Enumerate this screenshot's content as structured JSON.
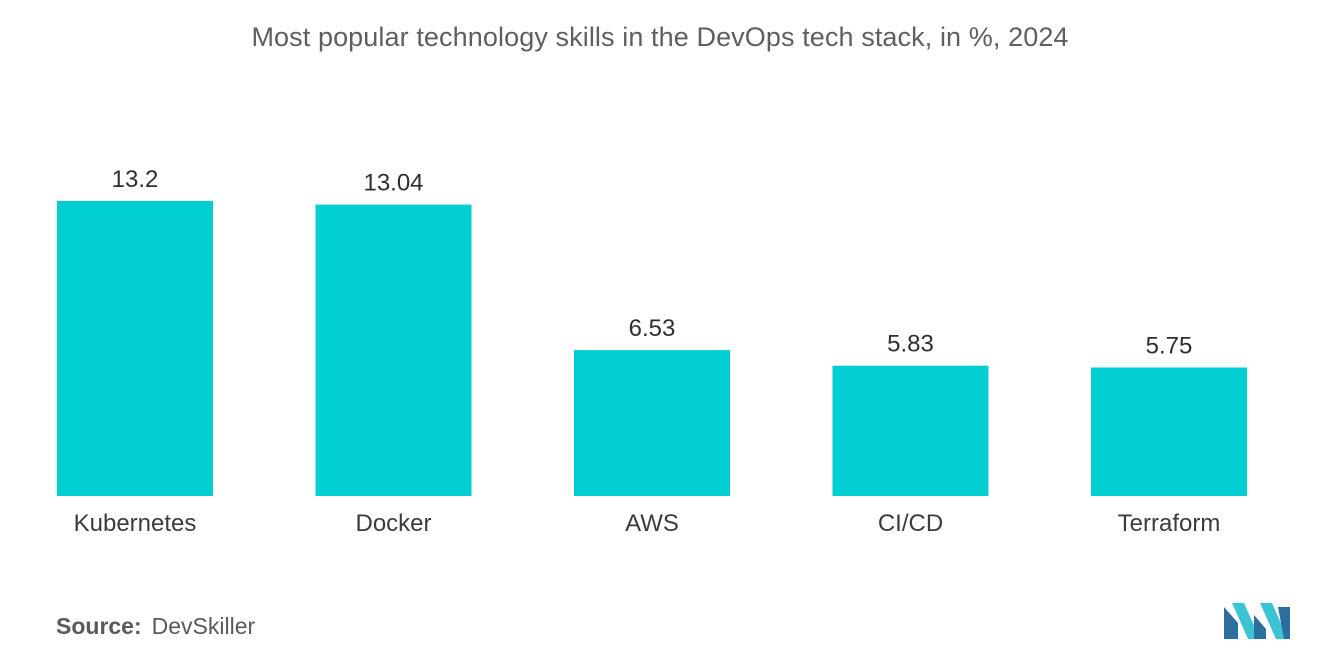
{
  "chart_data": {
    "type": "bar",
    "title": "Most popular technology skills in the DevOps tech stack, in %, 2024",
    "categories": [
      "Kubernetes",
      "Docker",
      "AWS",
      "CI/CD",
      "Terraform"
    ],
    "values": [
      13.2,
      13.04,
      6.53,
      5.83,
      5.75
    ],
    "value_labels": [
      "13.2",
      "13.04",
      "6.53",
      "5.83",
      "5.75"
    ],
    "xlabel": "",
    "ylabel": "",
    "ylim": [
      0,
      13.2
    ],
    "grid": false,
    "bar_color": "#00CED1"
  },
  "source": {
    "label": "Source:",
    "value": "DevSkiller"
  },
  "colors": {
    "bar": "#00CED1",
    "logo_dark": "#2C6E9E",
    "logo_light": "#3CC4D4"
  }
}
